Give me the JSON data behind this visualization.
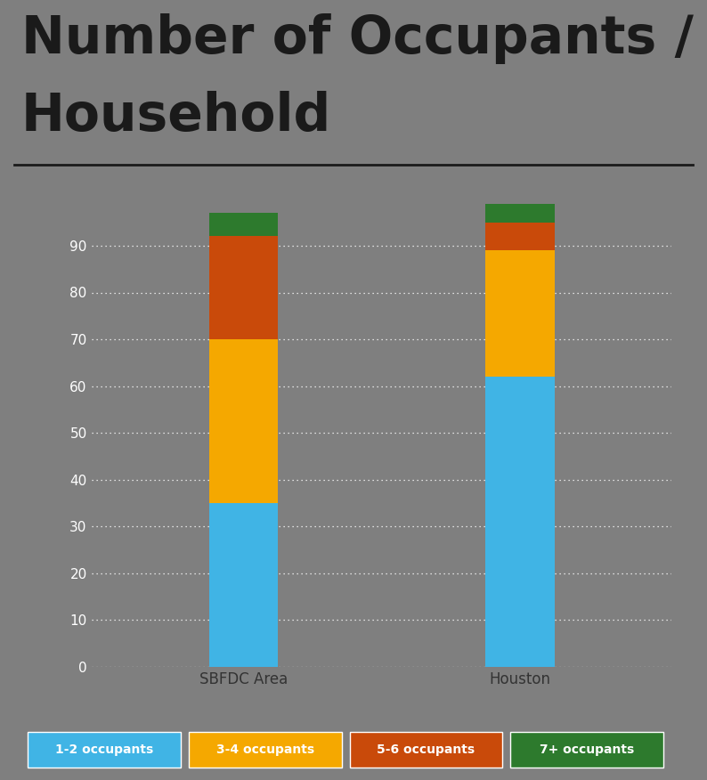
{
  "categories": [
    "SBFDC Area",
    "Houston"
  ],
  "series": {
    "1-2 occupants": [
      35,
      62
    ],
    "3-4 occupants": [
      35,
      27
    ],
    "5-6 occupants": [
      22,
      6
    ],
    "7+ occupants": [
      5,
      4
    ]
  },
  "colors": {
    "1-2 occupants": "#40B4E5",
    "3-4 occupants": "#F5A800",
    "5-6 occupants": "#C94A0A",
    "7+ occupants": "#2D7A2D"
  },
  "title_line1": "Number of Occupants /",
  "title_line2": "Household",
  "ylim": [
    0,
    100
  ],
  "yticks": [
    0,
    10,
    20,
    30,
    40,
    50,
    60,
    70,
    80,
    90
  ],
  "background_color": "#7f7f7f",
  "title_color": "#1a1a1a",
  "grid_color": "#ffffff",
  "tick_color": "#ffffff",
  "xaxis_band_color": "#c8c8c8",
  "bar_width": 0.25,
  "legend_keys": [
    "1-2 occupants",
    "3-4 occupants",
    "5-6 occupants",
    "7+ occupants"
  ],
  "legend_colors": [
    "#40B4E5",
    "#F5A800",
    "#C94A0A",
    "#2D7A2D"
  ]
}
